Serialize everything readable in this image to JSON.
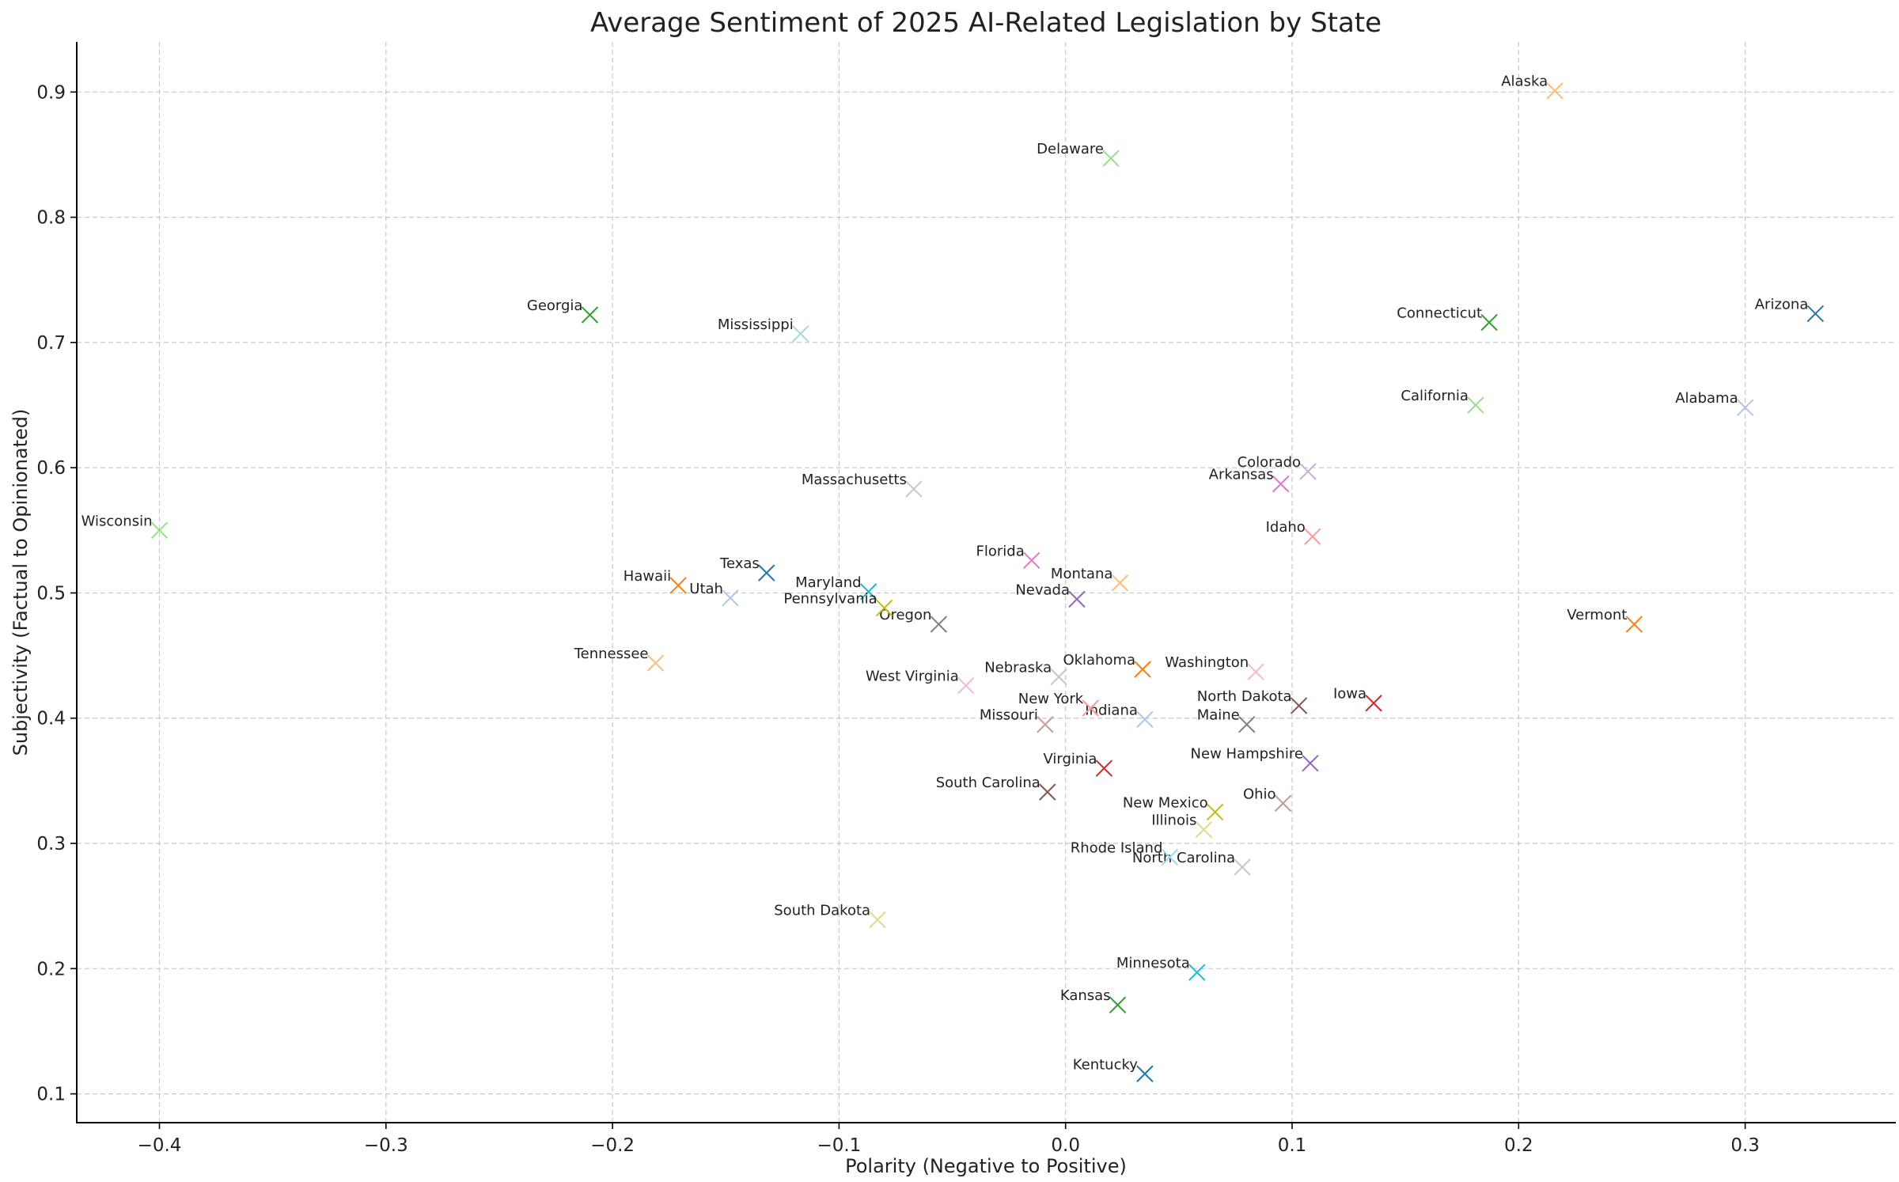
{
  "chart_data": {
    "type": "scatter",
    "title": "Average Sentiment of 2025 AI-Related Legislation by State",
    "xlabel": "Polarity (Negative to Positive)",
    "ylabel": "Subjectivity (Factual to Opinionated)",
    "xlim": [
      -0.4365,
      0.3665
    ],
    "ylim": [
      0.077,
      0.94
    ],
    "xticks": [
      -0.4,
      -0.3,
      -0.2,
      -0.1,
      0.0,
      0.1,
      0.2,
      0.3
    ],
    "xtick_labels": [
      "−0.4",
      "−0.3",
      "−0.2",
      "−0.1",
      "0.0",
      "0.1",
      "0.2",
      "0.3"
    ],
    "yticks": [
      0.1,
      0.2,
      0.3,
      0.4,
      0.5,
      0.6,
      0.7,
      0.8,
      0.9
    ],
    "ytick_labels": [
      "0.1",
      "0.2",
      "0.3",
      "0.4",
      "0.5",
      "0.6",
      "0.7",
      "0.8",
      "0.9"
    ],
    "grid": true,
    "marker": "x",
    "points": [
      {
        "name": "Alabama",
        "x": 0.3,
        "y": 0.648,
        "color": "#aec7e8"
      },
      {
        "name": "Alaska",
        "x": 0.216,
        "y": 0.901,
        "color": "#ffbb78"
      },
      {
        "name": "Arizona",
        "x": 0.331,
        "y": 0.723,
        "color": "#1f77b4"
      },
      {
        "name": "Arkansas",
        "x": 0.095,
        "y": 0.587,
        "color": "#e377c2"
      },
      {
        "name": "California",
        "x": 0.181,
        "y": 0.65,
        "color": "#98df8a"
      },
      {
        "name": "Colorado",
        "x": 0.107,
        "y": 0.597,
        "color": "#c5b0d5"
      },
      {
        "name": "Connecticut",
        "x": 0.187,
        "y": 0.716,
        "color": "#2ca02c"
      },
      {
        "name": "Delaware",
        "x": 0.02,
        "y": 0.847,
        "color": "#98df8a"
      },
      {
        "name": "Florida",
        "x": -0.015,
        "y": 0.526,
        "color": "#e377c2"
      },
      {
        "name": "Georgia",
        "x": -0.21,
        "y": 0.722,
        "color": "#2ca02c"
      },
      {
        "name": "Hawaii",
        "x": -0.171,
        "y": 0.506,
        "color": "#ff7f0e"
      },
      {
        "name": "Idaho",
        "x": 0.109,
        "y": 0.545,
        "color": "#ff9896"
      },
      {
        "name": "Illinois",
        "x": 0.061,
        "y": 0.311,
        "color": "#dbdb8d"
      },
      {
        "name": "Indiana",
        "x": 0.035,
        "y": 0.399,
        "color": "#aec7e8"
      },
      {
        "name": "Iowa",
        "x": 0.136,
        "y": 0.412,
        "color": "#d62728"
      },
      {
        "name": "Kansas",
        "x": 0.023,
        "y": 0.171,
        "color": "#2ca02c"
      },
      {
        "name": "Kentucky",
        "x": 0.035,
        "y": 0.116,
        "color": "#1f77b4"
      },
      {
        "name": "Maine",
        "x": 0.08,
        "y": 0.395,
        "color": "#7f7f7f"
      },
      {
        "name": "Maryland",
        "x": -0.087,
        "y": 0.501,
        "color": "#17becf"
      },
      {
        "name": "Massachusetts",
        "x": -0.067,
        "y": 0.583,
        "color": "#c7c7c7"
      },
      {
        "name": "Minnesota",
        "x": 0.058,
        "y": 0.197,
        "color": "#17becf"
      },
      {
        "name": "Mississippi",
        "x": -0.117,
        "y": 0.707,
        "color": "#9edae5"
      },
      {
        "name": "Missouri",
        "x": -0.009,
        "y": 0.395,
        "color": "#c49c94"
      },
      {
        "name": "Montana",
        "x": 0.024,
        "y": 0.508,
        "color": "#ffbb78"
      },
      {
        "name": "Nebraska",
        "x": -0.003,
        "y": 0.433,
        "color": "#c7c7c7"
      },
      {
        "name": "Nevada",
        "x": 0.005,
        "y": 0.495,
        "color": "#9467bd"
      },
      {
        "name": "New Hampshire",
        "x": 0.108,
        "y": 0.364,
        "color": "#9467bd"
      },
      {
        "name": "New Mexico",
        "x": 0.066,
        "y": 0.325,
        "color": "#bcbd22"
      },
      {
        "name": "New York",
        "x": 0.011,
        "y": 0.408,
        "color": "#ff9896"
      },
      {
        "name": "North Carolina",
        "x": 0.078,
        "y": 0.281,
        "color": "#c7c7c7"
      },
      {
        "name": "North Dakota",
        "x": 0.103,
        "y": 0.41,
        "color": "#8c564b"
      },
      {
        "name": "Ohio",
        "x": 0.096,
        "y": 0.332,
        "color": "#c49c94"
      },
      {
        "name": "Oklahoma",
        "x": 0.034,
        "y": 0.439,
        "color": "#ff7f0e"
      },
      {
        "name": "Oregon",
        "x": -0.056,
        "y": 0.475,
        "color": "#7f7f7f"
      },
      {
        "name": "Pennsylvania",
        "x": -0.08,
        "y": 0.488,
        "color": "#bcbd22"
      },
      {
        "name": "Rhode Island",
        "x": 0.046,
        "y": 0.289,
        "color": "#9edae5"
      },
      {
        "name": "South Carolina",
        "x": -0.008,
        "y": 0.341,
        "color": "#8c564b"
      },
      {
        "name": "South Dakota",
        "x": -0.083,
        "y": 0.239,
        "color": "#dbdb8d"
      },
      {
        "name": "Tennessee",
        "x": -0.181,
        "y": 0.444,
        "color": "#ffbb78"
      },
      {
        "name": "Texas",
        "x": -0.132,
        "y": 0.516,
        "color": "#1f77b4"
      },
      {
        "name": "Utah",
        "x": -0.148,
        "y": 0.496,
        "color": "#aec7e8"
      },
      {
        "name": "Vermont",
        "x": 0.251,
        "y": 0.475,
        "color": "#ff7f0e"
      },
      {
        "name": "Virginia",
        "x": 0.017,
        "y": 0.36,
        "color": "#d62728"
      },
      {
        "name": "Washington",
        "x": 0.084,
        "y": 0.437,
        "color": "#f7b6d2"
      },
      {
        "name": "West Virginia",
        "x": -0.044,
        "y": 0.426,
        "color": "#f7b6d2"
      },
      {
        "name": "Wisconsin",
        "x": -0.4,
        "y": 0.55,
        "color": "#98df8a"
      }
    ]
  }
}
